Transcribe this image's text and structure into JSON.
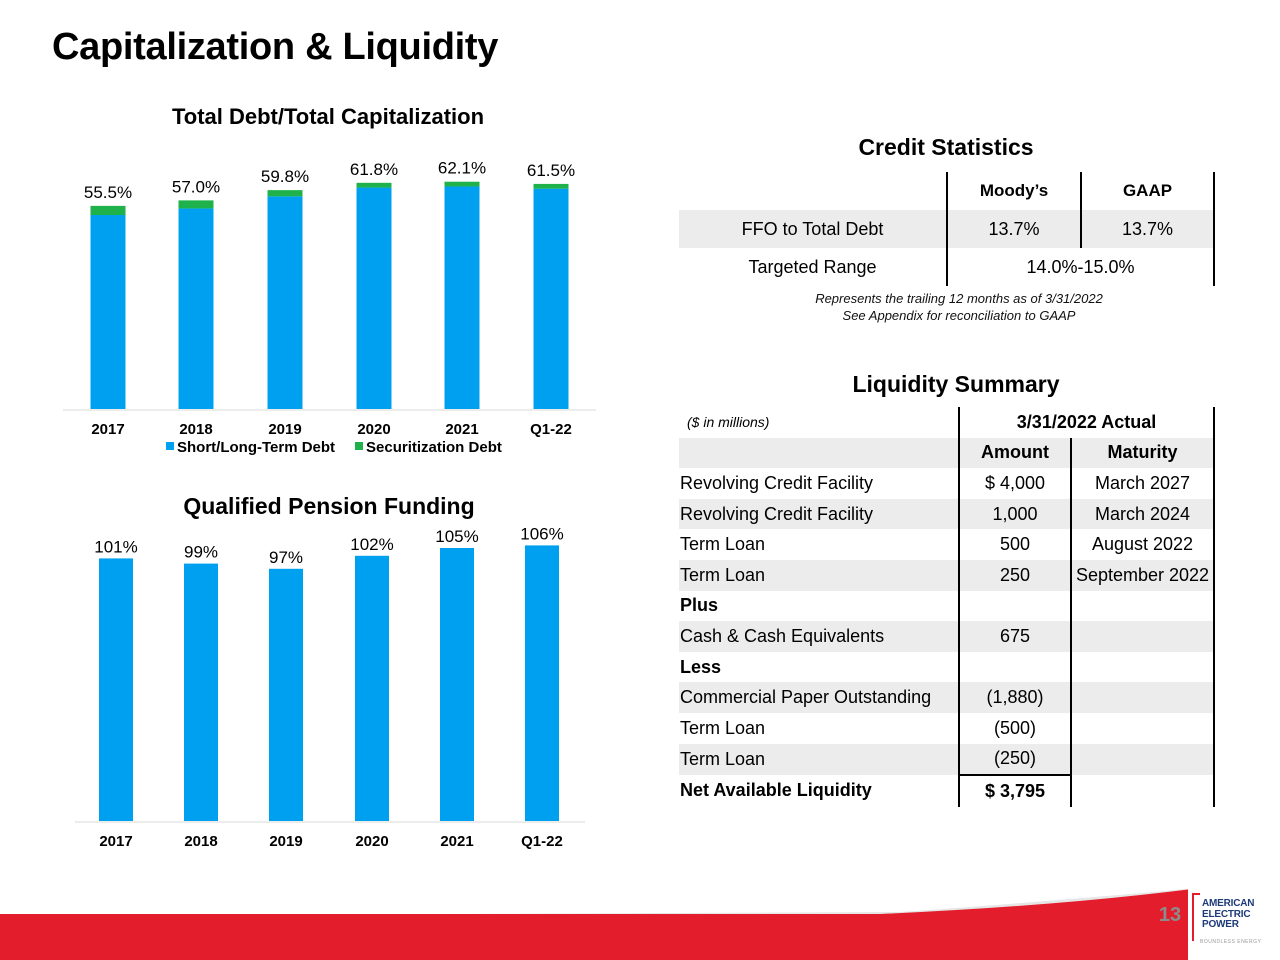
{
  "page": {
    "title": "Capitalization & Liquidity",
    "page_number": "13"
  },
  "logo": {
    "line1": "AMERICAN",
    "line2": "ELECTRIC",
    "line3": "POWER",
    "tagline": "BOUNDLESS ENERGY"
  },
  "colors": {
    "primary_bar": "#00a0f0",
    "securitization": "#1fb24a",
    "footer_red": "#e31d2b",
    "logo_blue": "#1d3b78"
  },
  "chart_data": [
    {
      "type": "bar",
      "stacked": true,
      "title": "Total Debt/Total Capitalization",
      "categories": [
        "2017",
        "2018",
        "2019",
        "2020",
        "2021",
        "Q1-22"
      ],
      "series": [
        {
          "name": "Short/Long-Term Debt",
          "color": "#00a0f0",
          "values": [
            53.0,
            54.8,
            58.1,
            60.5,
            60.8,
            60.2
          ]
        },
        {
          "name": "Securitization Debt",
          "color": "#1fb24a",
          "values": [
            2.5,
            2.2,
            1.7,
            1.3,
            1.3,
            1.3
          ]
        }
      ],
      "data_labels": [
        "55.5%",
        "57.0%",
        "59.8%",
        "61.8%",
        "62.1%",
        "61.5%"
      ],
      "legend": "bottom",
      "grid": false
    },
    {
      "type": "bar",
      "title": "Qualified Pension Funding",
      "categories": [
        "2017",
        "2018",
        "2019",
        "2020",
        "2021",
        "Q1-22"
      ],
      "values": [
        101,
        99,
        97,
        102,
        105,
        106
      ],
      "data_labels": [
        "101%",
        "99%",
        "97%",
        "102%",
        "105%",
        "106%"
      ],
      "color": "#00a0f0",
      "grid": false
    }
  ],
  "credit": {
    "title": "Credit Statistics",
    "col_moodys": "Moody’s",
    "col_gaap": "GAAP",
    "row1_label": "FFO to Total Debt",
    "row1_moodys": "13.7%",
    "row1_gaap": "13.7%",
    "row2_label": "Targeted Range",
    "row2_value": "14.0%-15.0%",
    "note1": "Represents the trailing 12 months as of 3/31/2022",
    "note2": "See Appendix for reconciliation to GAAP"
  },
  "liquidity": {
    "title": "Liquidity Summary",
    "units": "($ in millions)",
    "period": "3/31/2022 Actual",
    "col_amount": "Amount",
    "col_maturity": "Maturity",
    "rows": [
      {
        "label": "Revolving Credit Facility",
        "amount": "$ 4,000",
        "maturity": "March 2027"
      },
      {
        "label": "Revolving Credit Facility",
        "amount": "1,000",
        "maturity": "March 2024"
      },
      {
        "label": "Term Loan",
        "amount": "500",
        "maturity": "August 2022"
      },
      {
        "label": "Term Loan",
        "amount": "250",
        "maturity": "September 2022"
      },
      {
        "label": "Plus",
        "amount": "",
        "maturity": ""
      },
      {
        "label": "Cash & Cash Equivalents",
        "amount": "675",
        "maturity": ""
      },
      {
        "label": "Less",
        "amount": "",
        "maturity": ""
      },
      {
        "label": "Commercial Paper Outstanding",
        "amount": "(1,880)",
        "maturity": ""
      },
      {
        "label": "Term Loan",
        "amount": "(500)",
        "maturity": ""
      },
      {
        "label": "Term Loan",
        "amount": "(250)",
        "maturity": ""
      },
      {
        "label": "Net Available Liquidity",
        "amount": "$ 3,795",
        "maturity": ""
      }
    ]
  }
}
